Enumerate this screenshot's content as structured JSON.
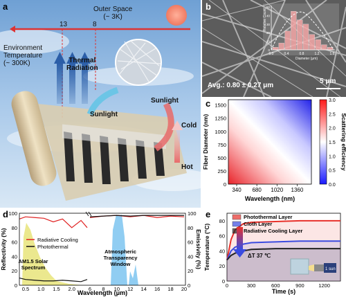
{
  "figure": {
    "panel_labels": [
      "a",
      "b",
      "c",
      "d",
      "e"
    ],
    "scale_bar_label": "5 μm"
  },
  "panel_a": {
    "outer_space_label": "Outer Space",
    "outer_space_temp": "(~ 3K)",
    "env_label": "Environment",
    "env_label_2": "Temperature",
    "env_temp": "(~ 300K)",
    "thermal_label": "Thermal",
    "thermal_label_2": "Radiation",
    "sunlight_left": "Sunlight",
    "sunlight_right": "Sunlight",
    "cold_label": "Cold",
    "hot_label": "Hot",
    "tick_13": "13",
    "tick_8": "8"
  },
  "panel_b": {
    "avg_text": "Avg.: 0.80 ± 0.27 μm",
    "hist_ylabel": "Relative Count",
    "hist_xlabel": "Diameter (μm)",
    "hist_xticks": [
      "0.0",
      "0.4",
      "0.8",
      "1.2",
      "1.6"
    ],
    "hist_yticks": [
      "0",
      "10",
      "20",
      "30",
      "40",
      "50"
    ],
    "hist_values": [
      3,
      8,
      22,
      45,
      35,
      30,
      18,
      12,
      6,
      3
    ]
  },
  "chart_data": [
    {
      "type": "heatmap",
      "panel": "c",
      "xlabel": "Wavelength (nm)",
      "ylabel": "Fiber Diameter (nm)",
      "colorbar_label": "Scattering efficiency",
      "xticks": [
        "340",
        "680",
        "1020",
        "1360"
      ],
      "yticks": [
        "0",
        "250",
        "500",
        "750",
        "1000",
        "1250",
        "1500"
      ],
      "colorbar_ticks": [
        "0.0",
        "0.5",
        "1.0",
        "1.5",
        "2.0",
        "2.5",
        "3.0"
      ],
      "xlim": [
        200,
        1600
      ],
      "ylim": [
        0,
        1600
      ],
      "crange": [
        0,
        3.0
      ]
    },
    {
      "type": "line",
      "panel": "d",
      "xlabel": "Wavelength (μm)",
      "ylabel_left": "Reflectivity (%)",
      "ylabel_right": "Emissivity (%)",
      "left_xticks": [
        "0.5",
        "1.0",
        "1.5",
        "2.0"
      ],
      "right_xticks": [
        "6",
        "8",
        "10",
        "12",
        "14",
        "16",
        "18",
        "20"
      ],
      "yticks": [
        "0",
        "20",
        "40",
        "60",
        "80",
        "100"
      ],
      "ylim": [
        0,
        100
      ],
      "legend": [
        "Radiative Cooling",
        "Photothermal"
      ],
      "solar_label": "AM1.5 Solar",
      "solar_label_2": "Spectrum",
      "window_label": "Atmospheric",
      "window_label_2": "Transparency",
      "window_label_3": "Window",
      "series": [
        {
          "name": "Radiative Cooling",
          "x_left": [
            0.3,
            0.5,
            0.8,
            1.1,
            1.4,
            1.7,
            2.0,
            2.3,
            2.5
          ],
          "y_left": [
            92,
            95,
            94,
            93,
            88,
            92,
            80,
            90,
            80
          ],
          "x_right": [
            6,
            8,
            10,
            12,
            14,
            16,
            18,
            20
          ],
          "y_right": [
            94,
            96,
            97,
            95,
            97,
            94,
            96,
            95
          ]
        },
        {
          "name": "Photothermal",
          "x_left": [
            0.3,
            0.5,
            0.8,
            1.1,
            1.4,
            1.7,
            2.0,
            2.3,
            2.5
          ],
          "y_left": [
            10,
            8,
            7,
            6,
            6,
            7,
            6,
            5,
            8
          ],
          "x_right": [
            6,
            8,
            10,
            12,
            14,
            16,
            18,
            20
          ],
          "y_right": [
            95,
            96,
            97,
            96,
            97,
            97,
            97,
            97
          ]
        }
      ]
    },
    {
      "type": "line",
      "panel": "e",
      "xlabel": "Time (s)",
      "ylabel": "Temperature (°C)",
      "xticks": [
        "0",
        "300",
        "600",
        "900",
        "1200"
      ],
      "yticks": [
        "0",
        "20",
        "40",
        "60",
        "80"
      ],
      "xlim": [
        0,
        1400
      ],
      "ylim": [
        0,
        90
      ],
      "delta_label": "ΔT 37 ℃",
      "sun_label": "1 sun",
      "series": [
        {
          "name": "Photothermal Layer",
          "color": "#e8302a",
          "x": [
            0,
            50,
            100,
            200,
            300,
            600,
            900,
            1200,
            1400
          ],
          "y": [
            28,
            55,
            68,
            76,
            78,
            79,
            80,
            80,
            80
          ]
        },
        {
          "name": "Cloth Layer",
          "color": "#3a4be0",
          "x": [
            0,
            50,
            100,
            200,
            300,
            600,
            900,
            1200,
            1400
          ],
          "y": [
            28,
            40,
            45,
            49,
            51,
            52,
            53,
            53,
            53
          ]
        },
        {
          "name": "Radiative Cooling Layer",
          "color": "#222222",
          "x": [
            0,
            50,
            100,
            200,
            300,
            600,
            900,
            1200,
            1400
          ],
          "y": [
            28,
            34,
            37,
            40,
            42,
            43,
            43,
            43,
            43
          ]
        }
      ]
    }
  ]
}
